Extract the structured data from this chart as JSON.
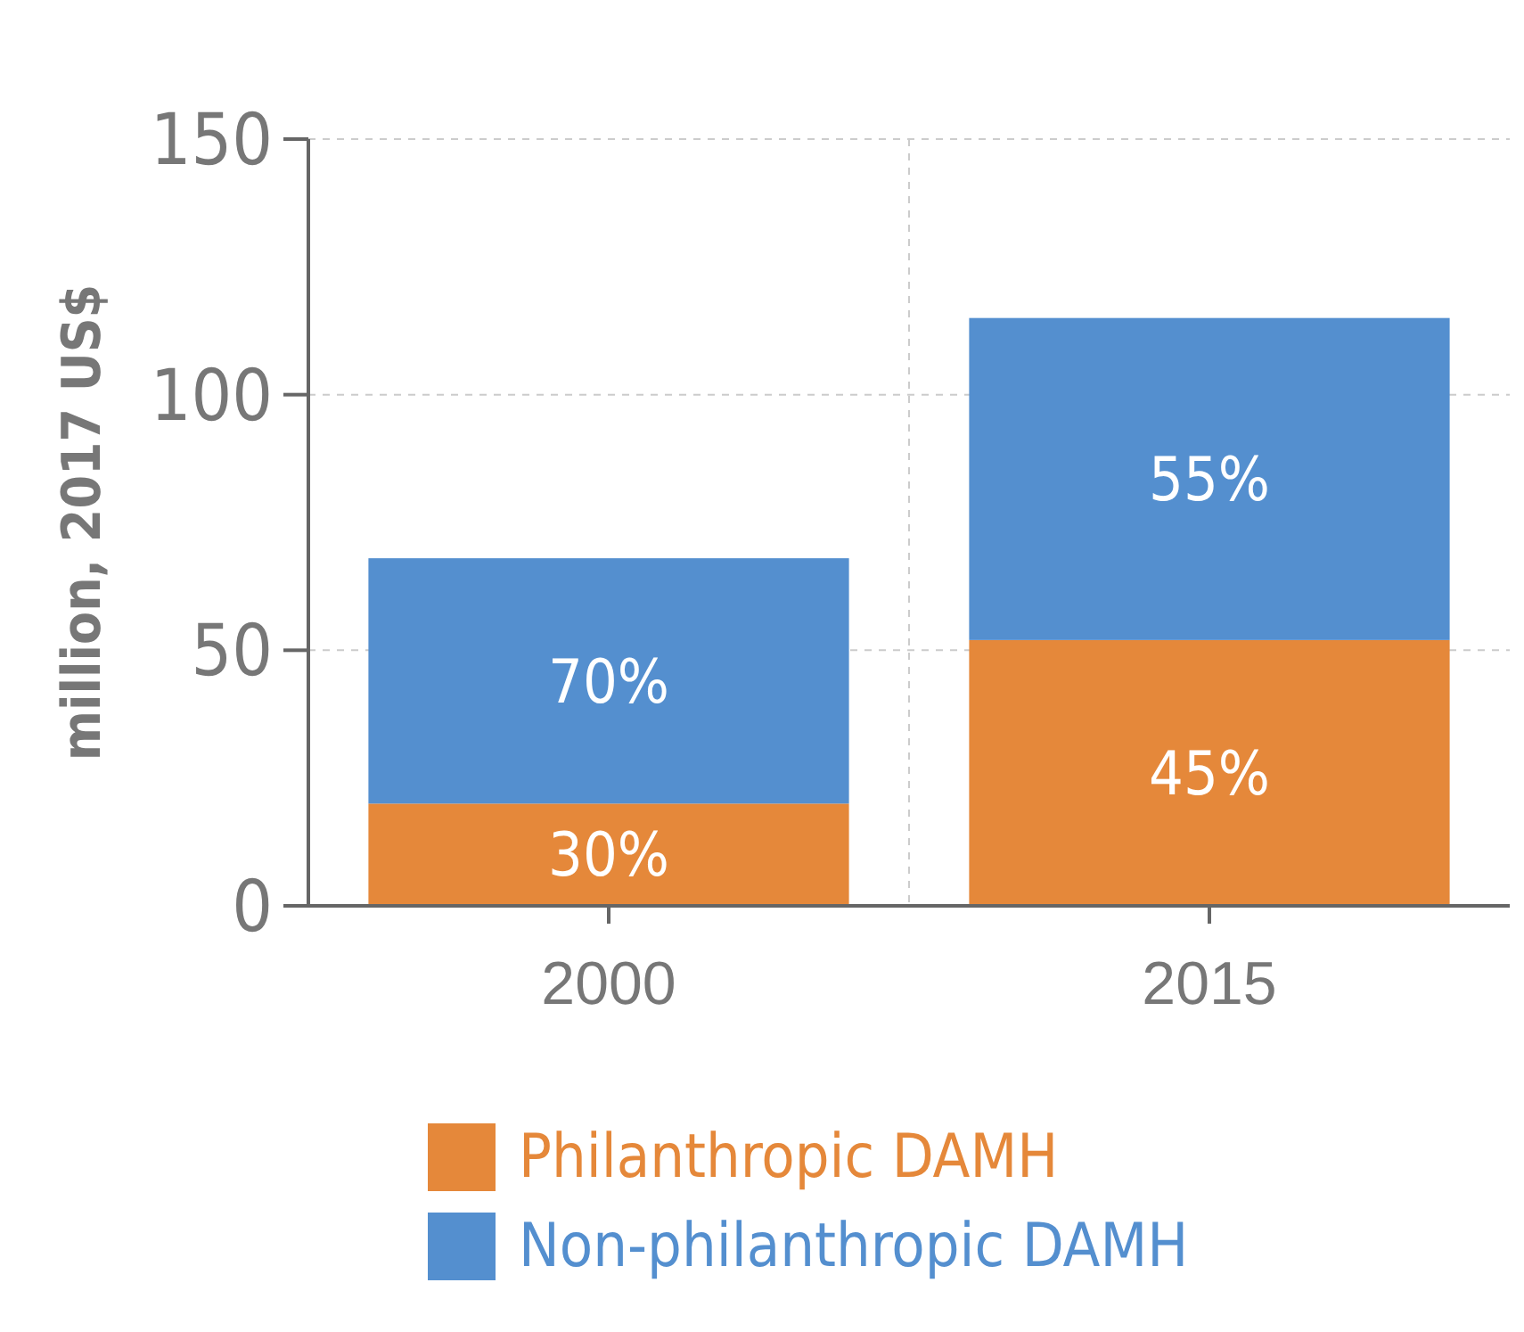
{
  "chart_data": {
    "type": "bar",
    "stacked": true,
    "ylabel": "million, 2017 US$",
    "categories": [
      "2000",
      "2015"
    ],
    "series": [
      {
        "name": "Philanthropic DAMH",
        "color": "#e5883a",
        "values": [
          20,
          52
        ]
      },
      {
        "name": "Non-philanthropic DAMH",
        "color": "#548fcf",
        "values": [
          48,
          63
        ]
      }
    ],
    "annotations": [
      "30%",
      "45%",
      "70%",
      "55%"
    ],
    "ylim": [
      0,
      150
    ],
    "yticks": [
      0,
      50,
      100,
      150
    ],
    "grid": true,
    "legend": "bottom"
  }
}
